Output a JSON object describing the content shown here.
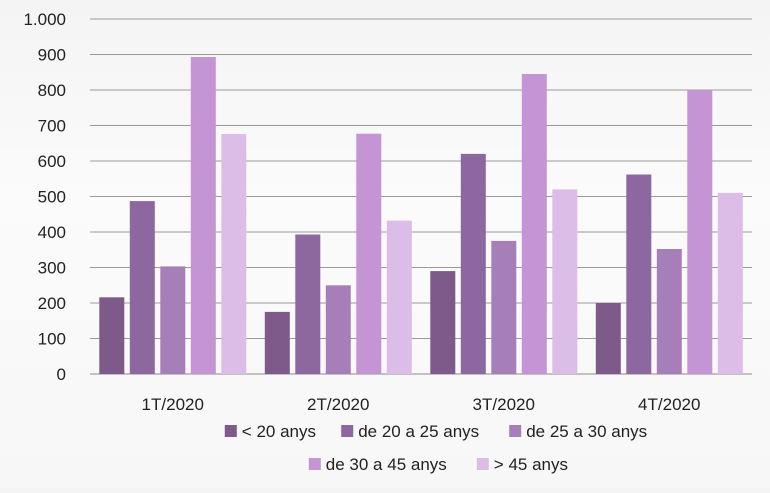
{
  "chart_data": {
    "type": "bar",
    "title": "",
    "xlabel": "",
    "ylabel": "",
    "categories": [
      "1T/2020",
      "2T/2020",
      "3T/2020",
      "4T/2020"
    ],
    "ylim": [
      0,
      1000
    ],
    "yticks": [
      0,
      100,
      200,
      300,
      400,
      500,
      600,
      700,
      800,
      900,
      1000
    ],
    "ytick_labels": [
      "0",
      "100",
      "200",
      "300",
      "400",
      "500",
      "600",
      "700",
      "800",
      "900",
      "1.000"
    ],
    "grid": true,
    "legend_position": "bottom",
    "series": [
      {
        "name": "< 20 anys",
        "color": "#7d5a8a",
        "values": [
          216,
          175,
          290,
          200
        ]
      },
      {
        "name": "de 20 a 25 anys",
        "color": "#8c67a0",
        "values": [
          487,
          393,
          620,
          562
        ]
      },
      {
        "name": "de 25 a 30 anys",
        "color": "#a77fb8",
        "values": [
          303,
          250,
          375,
          352
        ]
      },
      {
        "name": "de 30 a 45 anys",
        "color": "#c494d4",
        "values": [
          893,
          677,
          845,
          800
        ]
      },
      {
        "name": "> 45 anys",
        "color": "#dcbde8",
        "values": [
          676,
          432,
          520,
          510
        ]
      }
    ]
  }
}
